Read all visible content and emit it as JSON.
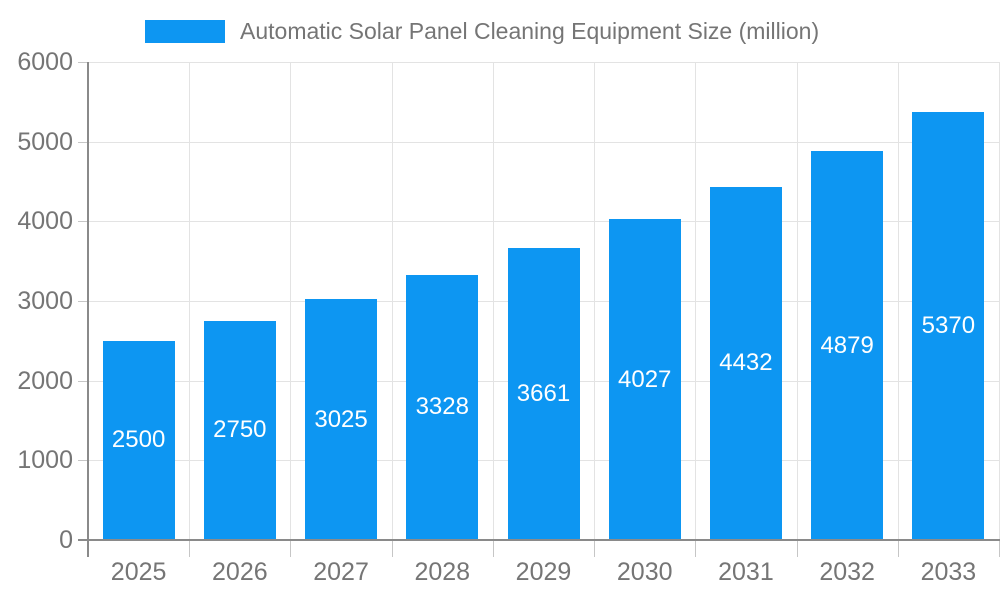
{
  "legend": {
    "label": "Automatic Solar Panel Cleaning Equipment Size (million)"
  },
  "colors": {
    "bar": "#0d96f2",
    "bar_label": "#ffffff",
    "axis_line": "#8a8a8a",
    "gridline": "#e3e3e3",
    "tick": "#c6c6c6",
    "axis_text": "#757575",
    "background": "#ffffff"
  },
  "chart_data": {
    "type": "bar",
    "title": "Automatic Solar Panel Cleaning Equipment Size (million)",
    "categories": [
      "2025",
      "2026",
      "2027",
      "2028",
      "2029",
      "2030",
      "2031",
      "2032",
      "2033"
    ],
    "values": [
      2500,
      2750,
      3025,
      3328,
      3661,
      4027,
      4432,
      4879,
      5370
    ],
    "bar_value_labels": [
      "2500",
      "2750",
      "3025",
      "3328",
      "3661",
      "4027",
      "4432",
      "4879",
      "5370"
    ],
    "xlabel": "",
    "ylabel": "",
    "ylim": [
      0,
      6000
    ],
    "ytick_step": 1000,
    "ytick_labels": [
      "0",
      "1000",
      "2000",
      "3000",
      "4000",
      "5000",
      "6000"
    ],
    "grid": true,
    "legend_position": "top-center",
    "bar_label_position": "inside-center"
  }
}
